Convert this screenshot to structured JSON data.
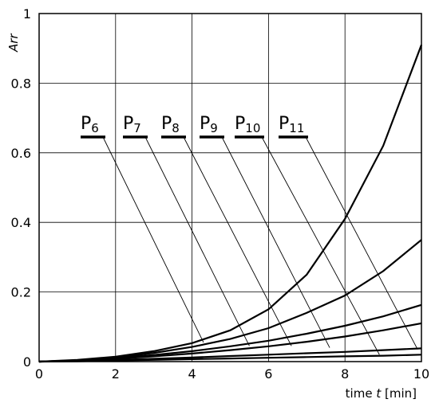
{
  "chart_data": {
    "type": "line",
    "xlabel_prefix": "time ",
    "xlabel_var": "t",
    "xlabel_unit": " [min]",
    "ylabel": "Arr",
    "xlim": [
      0,
      10
    ],
    "ylim": [
      0,
      1
    ],
    "grid": true,
    "x_ticks": [
      "0",
      "2",
      "4",
      "6",
      "8",
      "10"
    ],
    "y_ticks": [
      "0",
      "0.2",
      "0.4",
      "0.6",
      "0.8",
      "1"
    ],
    "x": [
      0,
      1,
      2,
      3,
      4,
      5,
      6,
      7,
      8,
      9,
      10
    ],
    "series": [
      {
        "values": [
          0,
          0.005,
          0.014,
          0.03,
          0.053,
          0.09,
          0.15,
          0.25,
          0.41,
          0.62,
          0.91
        ]
      },
      {
        "values": [
          0,
          0.004,
          0.012,
          0.025,
          0.042,
          0.065,
          0.096,
          0.14,
          0.19,
          0.26,
          0.35
        ]
      },
      {
        "values": [
          0,
          0.003,
          0.01,
          0.019,
          0.03,
          0.044,
          0.06,
          0.08,
          0.103,
          0.13,
          0.163
        ]
      },
      {
        "values": [
          0,
          0.003,
          0.008,
          0.015,
          0.023,
          0.033,
          0.044,
          0.057,
          0.072,
          0.09,
          0.11
        ]
      },
      {
        "values": [
          0,
          0.002,
          0.005,
          0.008,
          0.012,
          0.016,
          0.02,
          0.024,
          0.028,
          0.033,
          0.038
        ]
      },
      {
        "values": [
          0,
          0.001,
          0.003,
          0.005,
          0.007,
          0.009,
          0.011,
          0.013,
          0.015,
          0.017,
          0.02
        ]
      }
    ],
    "annotations": [
      {
        "base": "P",
        "sub": "6",
        "pointer_to": [
          4.3,
          0.055
        ]
      },
      {
        "base": "P",
        "sub": "7",
        "pointer_to": [
          5.5,
          0.045
        ]
      },
      {
        "base": "P",
        "sub": "8",
        "pointer_to": [
          6.6,
          0.045
        ]
      },
      {
        "base": "P",
        "sub": "9",
        "pointer_to": [
          7.6,
          0.04
        ]
      },
      {
        "base": "P",
        "sub": "10",
        "pointer_to": [
          8.9,
          0.02
        ]
      },
      {
        "base": "P",
        "sub": "11",
        "pointer_to": [
          9.9,
          0.035
        ]
      }
    ]
  }
}
